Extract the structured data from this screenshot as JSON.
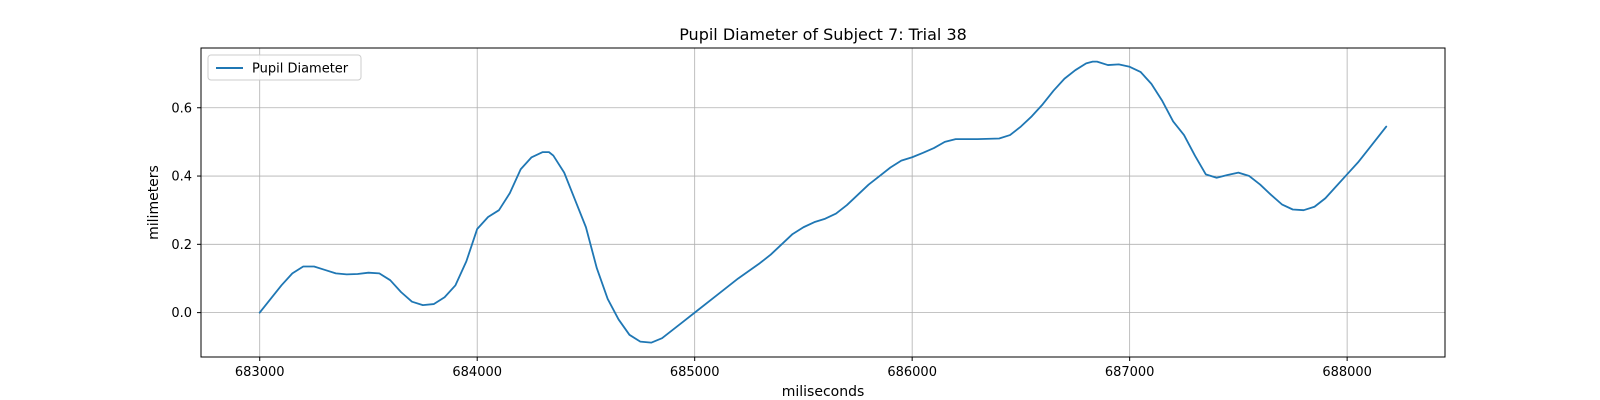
{
  "chart_data": {
    "type": "line",
    "title": "Pupil Diameter of Subject 7: Trial 38",
    "xlabel": "miliseconds",
    "ylabel": "milimeters",
    "xlim": [
      682730,
      688450
    ],
    "ylim": [
      -0.13,
      0.775
    ],
    "xticks": [
      683000,
      684000,
      685000,
      686000,
      687000,
      688000
    ],
    "xtick_labels": [
      "683000",
      "684000",
      "685000",
      "686000",
      "687000",
      "688000"
    ],
    "yticks": [
      0.0,
      0.2,
      0.4,
      0.6
    ],
    "ytick_labels": [
      "0.0",
      "0.2",
      "0.4",
      "0.6"
    ],
    "grid": true,
    "legend": {
      "position": "upper-left",
      "entries": [
        "Pupil Diameter"
      ]
    },
    "series": [
      {
        "name": "Pupil Diameter",
        "color": "#1f77b4",
        "x": [
          683000,
          683050,
          683100,
          683150,
          683200,
          683250,
          683300,
          683350,
          683400,
          683450,
          683500,
          683550,
          683600,
          683650,
          683700,
          683750,
          683800,
          683850,
          683900,
          683950,
          684000,
          684050,
          684100,
          684150,
          684200,
          684250,
          684300,
          684330,
          684350,
          684400,
          684450,
          684500,
          684550,
          684600,
          684650,
          684700,
          684750,
          684800,
          684850,
          684900,
          684950,
          685000,
          685100,
          685200,
          685300,
          685350,
          685400,
          685450,
          685500,
          685550,
          685600,
          685650,
          685700,
          685750,
          685800,
          685850,
          685900,
          685950,
          686000,
          686050,
          686100,
          686150,
          686200,
          686300,
          686400,
          686450,
          686500,
          686550,
          686600,
          686650,
          686700,
          686750,
          686800,
          686830,
          686850,
          686900,
          686950,
          687000,
          687050,
          687100,
          687150,
          687200,
          687250,
          687300,
          687350,
          687400,
          687450,
          687500,
          687550,
          687600,
          687650,
          687700,
          687750,
          687800,
          687850,
          687900,
          687950,
          688000,
          688050,
          688100,
          688180
        ],
        "y": [
          0.0,
          0.04,
          0.08,
          0.115,
          0.135,
          0.135,
          0.125,
          0.115,
          0.112,
          0.113,
          0.117,
          0.115,
          0.095,
          0.06,
          0.032,
          0.022,
          0.025,
          0.045,
          0.08,
          0.15,
          0.245,
          0.28,
          0.3,
          0.35,
          0.42,
          0.455,
          0.47,
          0.47,
          0.46,
          0.41,
          0.33,
          0.25,
          0.13,
          0.04,
          -0.02,
          -0.065,
          -0.085,
          -0.088,
          -0.075,
          -0.05,
          -0.025,
          0.0,
          0.05,
          0.1,
          0.145,
          0.17,
          0.2,
          0.23,
          0.25,
          0.265,
          0.275,
          0.29,
          0.315,
          0.345,
          0.375,
          0.4,
          0.425,
          0.445,
          0.455,
          0.468,
          0.482,
          0.5,
          0.508,
          0.508,
          0.51,
          0.52,
          0.545,
          0.575,
          0.61,
          0.65,
          0.685,
          0.71,
          0.73,
          0.735,
          0.735,
          0.725,
          0.727,
          0.72,
          0.705,
          0.67,
          0.62,
          0.56,
          0.52,
          0.46,
          0.405,
          0.395,
          0.403,
          0.41,
          0.4,
          0.375,
          0.345,
          0.317,
          0.302,
          0.3,
          0.31,
          0.335,
          0.37,
          0.405,
          0.44,
          0.48,
          0.545
        ]
      }
    ]
  }
}
